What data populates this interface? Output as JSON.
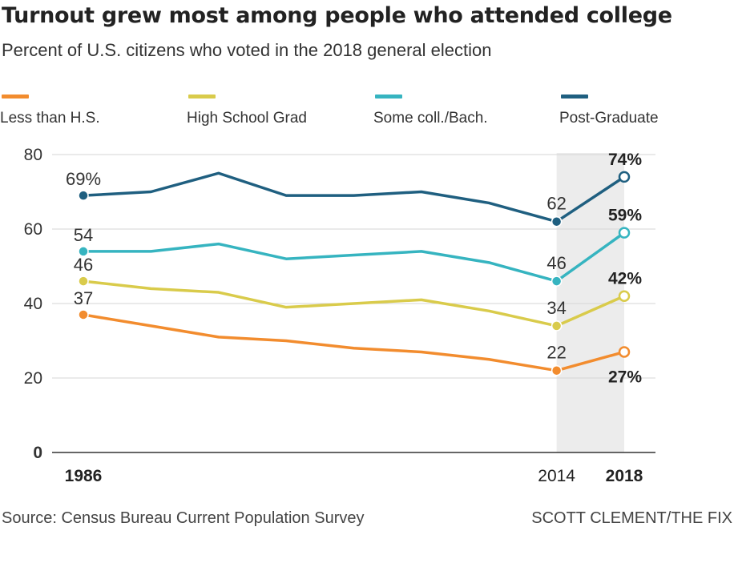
{
  "title": "Turnout grew most among people who attended college",
  "subtitle": "Percent of U.S. citizens who voted in the 2018 general election",
  "source": "Source: Census Bureau Current Population Survey",
  "credit": "SCOTT CLEMENT/THE FIX",
  "chart_data": {
    "type": "line",
    "title": "Turnout grew most among people who attended college",
    "subtitle": "Percent of U.S. citizens who voted in the 2018 general election",
    "xlabel": "",
    "ylabel": "",
    "ylim": [
      0,
      80
    ],
    "xlim": [
      1986,
      2018
    ],
    "y_ticks": [
      "0",
      "20",
      "40",
      "60",
      "80"
    ],
    "x_ticks": [
      {
        "value": 1986,
        "label": "1986",
        "bold": true
      },
      {
        "value": 2014,
        "label": "2014",
        "bold": false
      },
      {
        "value": 2018,
        "label": "2018",
        "bold": true
      }
    ],
    "highlight_range": [
      2014,
      2018
    ],
    "highlight_color": "#ececec",
    "grid": true,
    "legend_position": "top",
    "x": [
      1986,
      1990,
      1994,
      1998,
      2002,
      2006,
      2010,
      2014,
      2018
    ],
    "series": [
      {
        "name": "Less than H.S.",
        "color": "#f28c2e",
        "values": [
          37,
          34,
          31,
          30,
          28,
          27,
          25,
          22,
          27
        ],
        "labels": [
          {
            "index": 0,
            "text": "37",
            "bold": false
          },
          {
            "index": 7,
            "text": "22",
            "bold": false
          },
          {
            "index": 8,
            "text": "27%",
            "bold": true
          }
        ]
      },
      {
        "name": "High School Grad",
        "color": "#d9cb4b",
        "values": [
          46,
          44,
          43,
          39,
          40,
          41,
          38,
          34,
          42
        ],
        "labels": [
          {
            "index": 0,
            "text": "46",
            "bold": false
          },
          {
            "index": 7,
            "text": "34",
            "bold": false
          },
          {
            "index": 8,
            "text": "42%",
            "bold": true
          }
        ]
      },
      {
        "name": "Some coll./Bach.",
        "color": "#36b4c0",
        "values": [
          54,
          54,
          56,
          52,
          53,
          54,
          51,
          46,
          59
        ],
        "labels": [
          {
            "index": 0,
            "text": "54",
            "bold": false
          },
          {
            "index": 7,
            "text": "46",
            "bold": false
          },
          {
            "index": 8,
            "text": "59%",
            "bold": true
          }
        ]
      },
      {
        "name": "Post-Graduate",
        "color": "#1f5f80",
        "values": [
          69,
          70,
          75,
          69,
          69,
          70,
          67,
          62,
          74
        ],
        "labels": [
          {
            "index": 0,
            "text": "69%",
            "bold": false
          },
          {
            "index": 7,
            "text": "62",
            "bold": false
          },
          {
            "index": 8,
            "text": "74%",
            "bold": true
          }
        ]
      }
    ]
  }
}
